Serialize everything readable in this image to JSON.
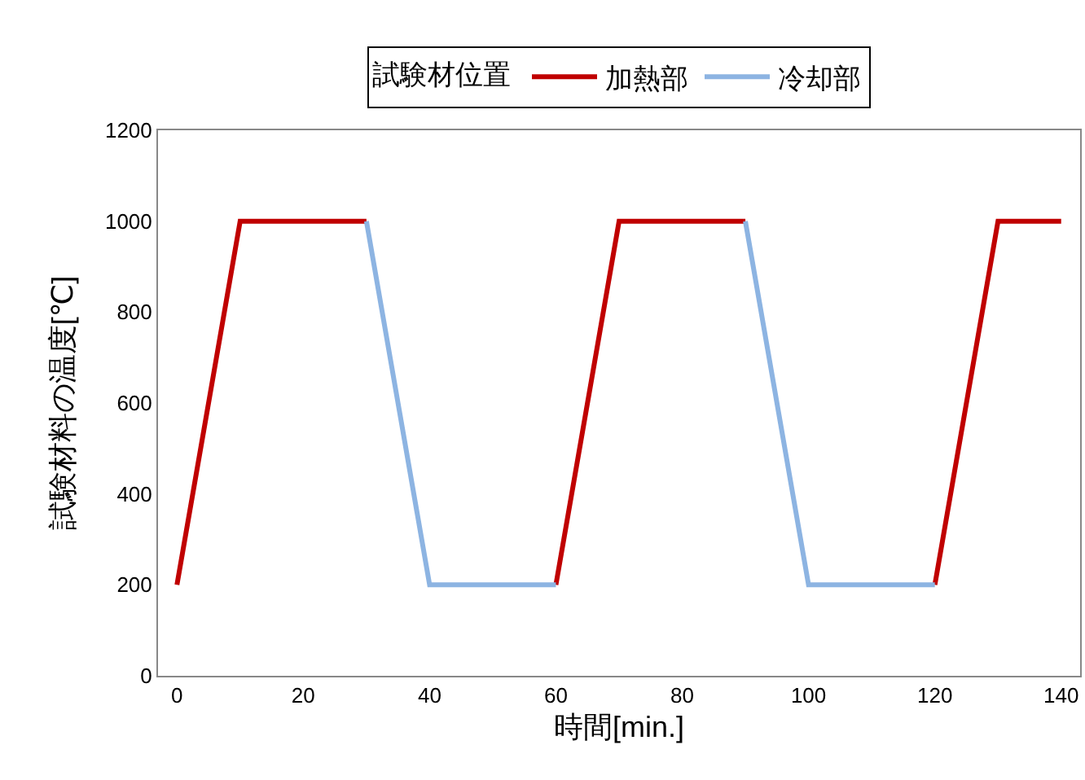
{
  "chart_data": {
    "type": "line",
    "xlabel": "時間[min.]",
    "ylabel": "試験材料の温度[℃]",
    "legend_title": "試験材位置",
    "xlim": [
      -3,
      143
    ],
    "xticks": [
      0,
      20,
      40,
      60,
      80,
      100,
      120,
      140
    ],
    "ylim": [
      0,
      1200
    ],
    "yticks": [
      0,
      200,
      400,
      600,
      800,
      1000,
      1200
    ],
    "grid": false,
    "legend": "top",
    "marker": "none",
    "line_style": "solid",
    "series": [
      {
        "name": "加熱部",
        "color": "#c00000",
        "x": [
          0,
          10,
          30,
          45,
          60,
          70,
          90,
          105,
          120,
          130,
          140
        ],
        "values": [
          200,
          1000,
          1000,
          null,
          200,
          1000,
          1000,
          null,
          200,
          1000,
          1000
        ]
      },
      {
        "name": "冷却部",
        "color": "#8db4e2",
        "x": [
          30,
          40,
          60,
          75,
          90,
          100,
          120
        ],
        "values": [
          1000,
          200,
          200,
          null,
          1000,
          200,
          200
        ]
      }
    ]
  }
}
